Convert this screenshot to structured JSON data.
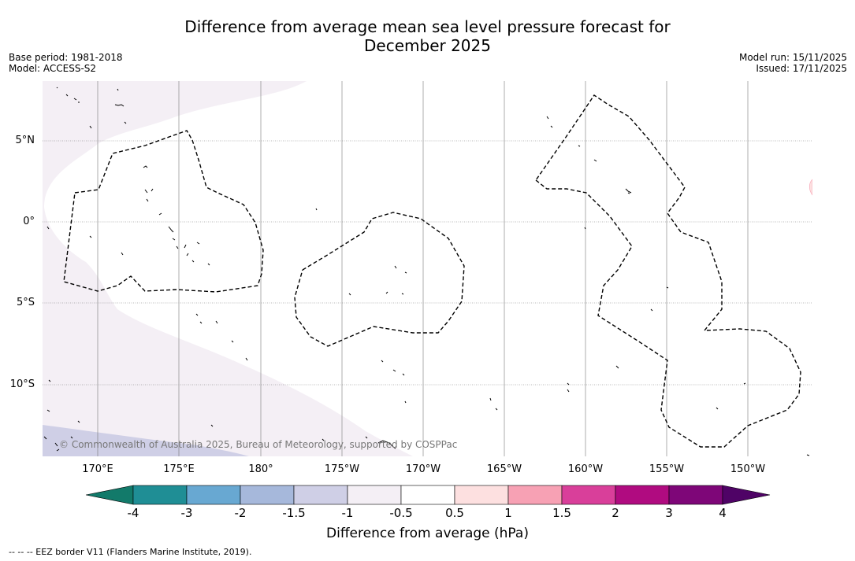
{
  "title_line1": "Difference from average mean sea level pressure forecast for",
  "title_line2": "December 2025",
  "base_period": "Base period: 1981-2018",
  "model": "Model: ACCESS-S2",
  "model_run": "Model run: 15/11/2025",
  "issued": "Issued: 17/11/2025",
  "copyright": "© Commonwealth of Australia 2025, Bureau of Meteorology, supported by COSPPac",
  "colorbar_label": "Difference from average (hPa)",
  "footnote": "--  --  -- EEZ border V11 (Flanders Marine Institute, 2019).",
  "latitude_labels": [
    "5°N",
    "0°",
    "5°S",
    "10°S"
  ],
  "longitude_labels": [
    "170°E",
    "175°E",
    "180°",
    "175°W",
    "170°W",
    "165°W",
    "160°W",
    "155°W",
    "150°W"
  ],
  "colorbar": {
    "ticks": [
      "-4",
      "-3",
      "-2",
      "-1.5",
      "-1",
      "-0.5",
      "0.5",
      "1",
      "1.5",
      "2",
      "3",
      "4"
    ],
    "colors": [
      "#1f8e95",
      "#68a8d2",
      "#a6b8db",
      "#cfcfe6",
      "#f4eff5",
      "#ffffff",
      "#fde0e0",
      "#f7a1b4",
      "#d93f9a",
      "#b00b80",
      "#7e0678"
    ],
    "under_color": "#127a6a",
    "over_color": "#4f0366"
  },
  "chart_data": {
    "type": "map",
    "variable": "Difference from average mean sea level pressure (hPa)",
    "lon_range": [
      166.7,
      213.4
    ],
    "lat_range": [
      -14.5,
      8.6
    ],
    "field_classes": [
      {
        "area": "western region around 170°E-180°, north of equator",
        "class": "-1 to -0.5"
      },
      {
        "area": "southwest corner 170°E-178°E, 12°S-14°S",
        "class": "-1.5 to -1"
      },
      {
        "area": "most of central and eastern region",
        "class": "-0.5 to 0.5"
      },
      {
        "area": "small patch near 147°W, 2°N",
        "class": "0.5 to 1"
      }
    ]
  }
}
